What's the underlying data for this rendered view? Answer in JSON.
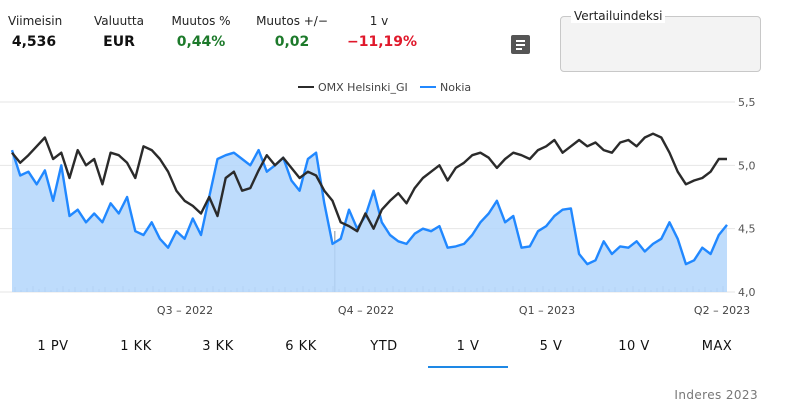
{
  "stats": [
    {
      "label": "Viimeisin",
      "value": "4,536",
      "tone": "default"
    },
    {
      "label": "Valuutta",
      "value": "EUR",
      "tone": "default"
    },
    {
      "label": "Muutos %",
      "value": "0,44%",
      "tone": "pos"
    },
    {
      "label": "Muutos +/−",
      "value": "0,02",
      "tone": "pos"
    },
    {
      "label": "1 v",
      "value": "−11,19%",
      "tone": "neg"
    }
  ],
  "compare": {
    "label": "Vertailuindeksi"
  },
  "icons": {
    "document": "document-icon"
  },
  "colors": {
    "omx": "#2b2b2b",
    "nokia": "#2188ff",
    "nokia_fill": "#b3d6fb",
    "positive": "#1d7a2b",
    "negative": "#e0182b",
    "accent": "#1e88e5"
  },
  "chart_data": {
    "type": "line",
    "y_ticks": [
      "4,0",
      "4,5",
      "5,0",
      "5,5"
    ],
    "ylim": [
      4.0,
      5.5
    ],
    "y_axis_side": "right",
    "grid": true,
    "legend_position": "top-center",
    "x_ticks": [
      "Q3 – 2022",
      "Q4 – 2022",
      "Q1 – 2023",
      "Q2 – 2023"
    ],
    "series": [
      {
        "name": "OMX Helsinki_GI",
        "type": "line",
        "values": [
          5.1,
          5.02,
          5.08,
          5.15,
          5.22,
          5.05,
          5.1,
          4.9,
          5.12,
          5.0,
          5.05,
          4.85,
          5.1,
          5.08,
          5.02,
          4.9,
          5.15,
          5.12,
          5.05,
          4.95,
          4.8,
          4.72,
          4.68,
          4.62,
          4.75,
          4.6,
          4.9,
          4.95,
          4.8,
          4.82,
          4.96,
          5.08,
          5.0,
          5.06,
          4.98,
          4.9,
          4.95,
          4.92,
          4.8,
          4.72,
          4.55,
          4.52,
          4.48,
          4.62,
          4.5,
          4.65,
          4.72,
          4.78,
          4.7,
          4.82,
          4.9,
          4.95,
          5.0,
          4.88,
          4.98,
          5.02,
          5.08,
          5.1,
          5.06,
          4.98,
          5.05,
          5.1,
          5.08,
          5.05,
          5.12,
          5.15,
          5.2,
          5.1,
          5.15,
          5.2,
          5.15,
          5.18,
          5.12,
          5.1,
          5.18,
          5.2,
          5.15,
          5.22,
          5.25,
          5.22,
          5.1,
          4.95,
          4.85,
          4.88,
          4.9,
          4.95,
          5.05,
          5.05
        ]
      },
      {
        "name": "Nokia",
        "type": "area",
        "values": [
          5.12,
          4.92,
          4.95,
          4.85,
          4.96,
          4.72,
          5.0,
          4.6,
          4.65,
          4.55,
          4.62,
          4.55,
          4.7,
          4.62,
          4.75,
          4.48,
          4.45,
          4.55,
          4.42,
          4.35,
          4.48,
          4.42,
          4.58,
          4.45,
          4.75,
          5.05,
          5.08,
          5.1,
          5.05,
          5.0,
          5.12,
          4.95,
          5.0,
          5.06,
          4.88,
          4.8,
          5.05,
          5.1,
          4.7,
          4.38,
          4.42,
          4.65,
          4.5,
          4.6,
          4.8,
          4.55,
          4.45,
          4.4,
          4.38,
          4.46,
          4.5,
          4.48,
          4.52,
          4.35,
          4.36,
          4.38,
          4.45,
          4.55,
          4.62,
          4.72,
          4.55,
          4.6,
          4.35,
          4.36,
          4.48,
          4.52,
          4.6,
          4.65,
          4.66,
          4.3,
          4.22,
          4.25,
          4.4,
          4.3,
          4.36,
          4.35,
          4.4,
          4.32,
          4.38,
          4.42,
          4.55,
          4.42,
          4.22,
          4.25,
          4.35,
          4.3,
          4.45,
          4.53
        ]
      }
    ],
    "ranges": [
      "1 PV",
      "1 KK",
      "3 KK",
      "6 KK",
      "YTD",
      "1 V",
      "5 V",
      "10 V",
      "MAX"
    ],
    "active_range": "1 V"
  },
  "credit": "Inderes 2023"
}
